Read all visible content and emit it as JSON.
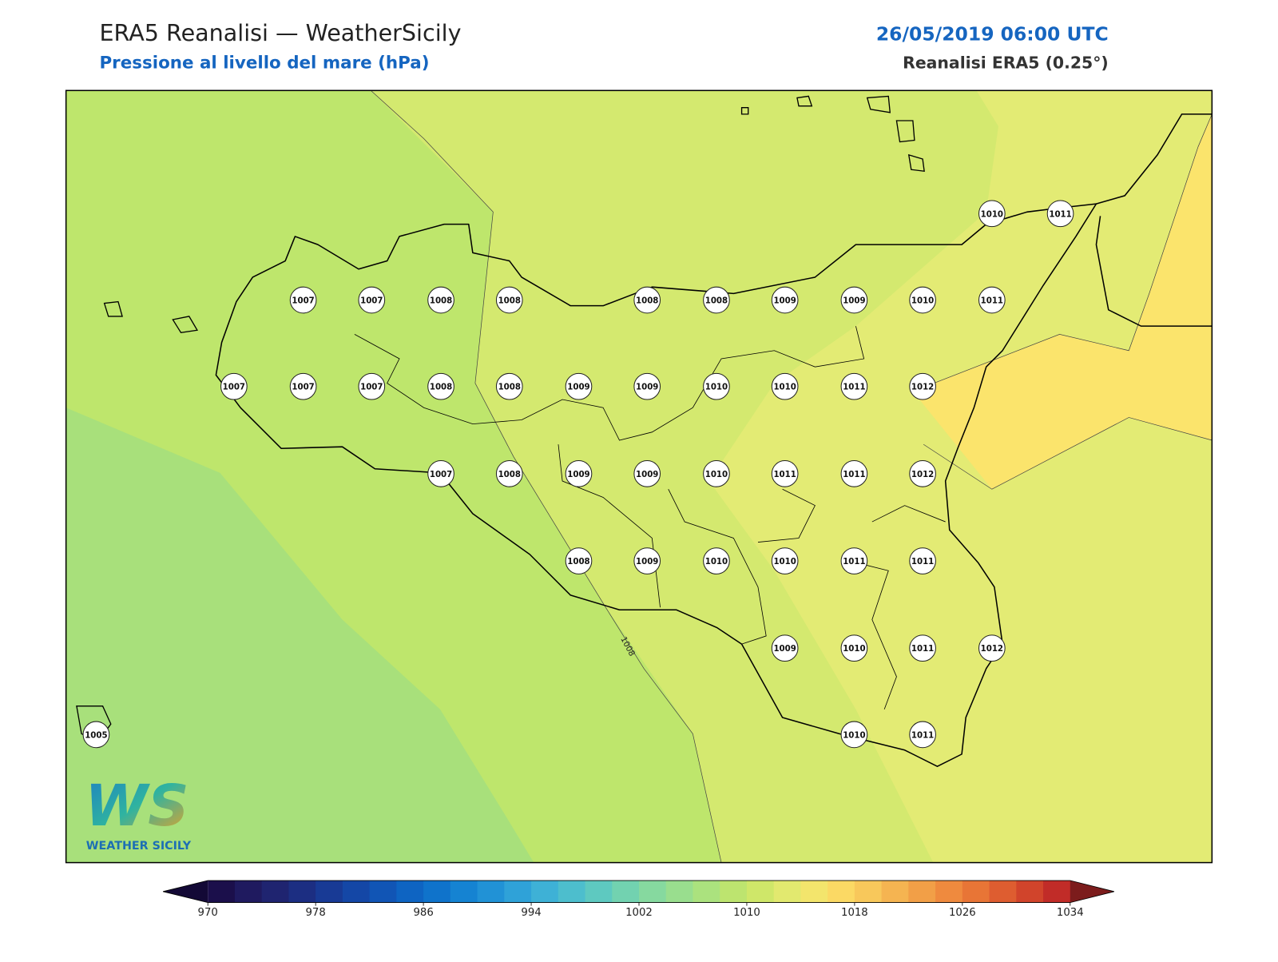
{
  "header": {
    "title": "ERA5 Reanalisi — WeatherSicily",
    "subtitle": "Pressione al livello del mare (hPa)",
    "datetime": "26/05/2019 06:00 UTC",
    "source": "Reanalisi ERA5 (0.25°)"
  },
  "map": {
    "stations": [
      1010,
      1011,
      1007,
      1007,
      1008,
      1008,
      1008,
      1008,
      1009,
      1009,
      1010,
      1011,
      1007,
      1007,
      1007,
      1008,
      1008,
      1009,
      1009,
      1010,
      1010,
      1011,
      1012,
      1007,
      1008,
      1009,
      1009,
      1010,
      1011,
      1011,
      1012,
      1008,
      1009,
      1010,
      1010,
      1011,
      1011,
      1009,
      1010,
      1011,
      1012,
      1005,
      1010,
      1011
    ],
    "contour_label": 1008
  },
  "colorbar": {
    "ticks": [
      970,
      978,
      986,
      994,
      1002,
      1010,
      1018,
      1026,
      1034
    ],
    "colors": [
      "#1b0f4b",
      "#1f1a5f",
      "#1f2470",
      "#1c2e82",
      "#183a95",
      "#1447a6",
      "#1155b5",
      "#0e64c2",
      "#0f73cb",
      "#1583d2",
      "#2192d6",
      "#2fa2d8",
      "#3eb1d6",
      "#4dbecd",
      "#5ec9c0",
      "#72d2b0",
      "#86d99f",
      "#99de8e",
      "#abe27e",
      "#bde46f",
      "#cfe769",
      "#e2e96f",
      "#f3e56c",
      "#fbd964",
      "#f8c85b",
      "#f5b451",
      "#f29f47",
      "#ef8a3e",
      "#e87536",
      "#de5d30",
      "#d1442b",
      "#c12c28"
    ],
    "under": "#130936",
    "over": "#7c1c1c"
  },
  "logo": {
    "mark": "WS",
    "name": "WEATHER SICILY"
  }
}
